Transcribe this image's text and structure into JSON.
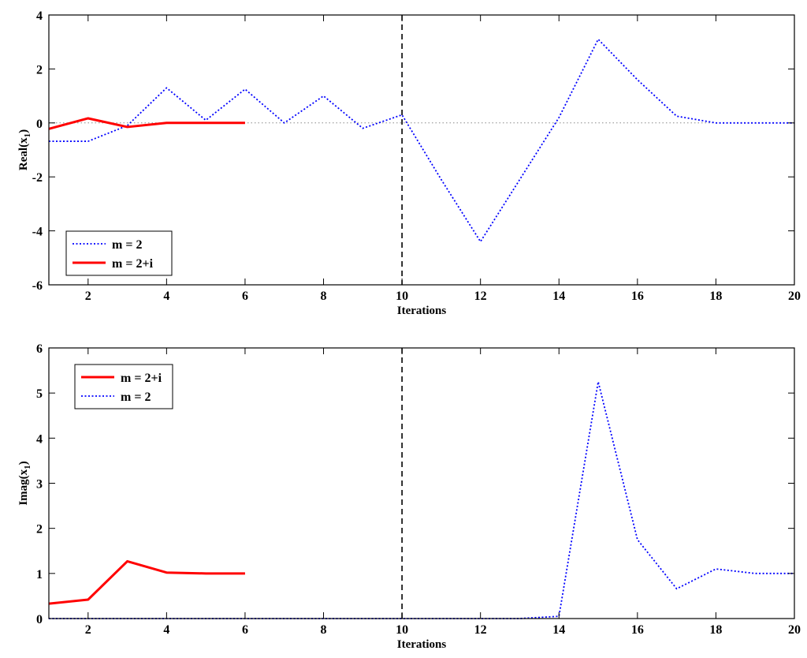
{
  "chart_data": [
    {
      "type": "line",
      "xlabel": "Iterations",
      "ylabel": "Real(x",
      "ylabel_sub": "1",
      "ylabel_close": ")",
      "xlim": [
        1,
        20
      ],
      "ylim": [
        -6,
        4
      ],
      "xticks": [
        2,
        4,
        6,
        8,
        10,
        12,
        14,
        16,
        18,
        20
      ],
      "yticks": [
        -6,
        -4,
        -2,
        0,
        2,
        4
      ],
      "grid": false,
      "vline_x": 10,
      "zero_line": true,
      "legend_position": "bottom-left",
      "legend": [
        "m = 2",
        "m = 2+i"
      ],
      "series": [
        {
          "name": "m = 2",
          "style": "dotted",
          "color": "#0000ff",
          "x": [
            1,
            2,
            3,
            4,
            5,
            6,
            7,
            8,
            9,
            10,
            11,
            12,
            13,
            14,
            15,
            16,
            17,
            18,
            19,
            20
          ],
          "y": [
            -0.68,
            -0.68,
            -0.1,
            1.3,
            0.1,
            1.25,
            0.0,
            1.0,
            -0.2,
            0.3,
            -2.1,
            -4.4,
            -2.1,
            0.2,
            3.1,
            1.6,
            0.25,
            0.0,
            0.0,
            0.0
          ]
        },
        {
          "name": "m = 2+i",
          "style": "solid",
          "color": "#ff0000",
          "x": [
            1,
            2,
            3,
            4,
            5,
            6
          ],
          "y": [
            -0.22,
            0.17,
            -0.15,
            0.0,
            0.0,
            0.0
          ]
        }
      ]
    },
    {
      "type": "line",
      "xlabel": "Iterations",
      "ylabel": "Imag(x",
      "ylabel_sub": "1",
      "ylabel_close": ")",
      "xlim": [
        1,
        20
      ],
      "ylim": [
        0,
        6
      ],
      "xticks": [
        2,
        4,
        6,
        8,
        10,
        12,
        14,
        16,
        18,
        20
      ],
      "yticks": [
        0,
        1,
        2,
        3,
        4,
        5,
        6
      ],
      "grid": false,
      "vline_x": 10,
      "zero_line": false,
      "legend_position": "top-left",
      "legend": [
        "m = 2+i",
        "m = 2"
      ],
      "series": [
        {
          "name": "m = 2+i",
          "style": "solid",
          "color": "#ff0000",
          "x": [
            1,
            2,
            3,
            4,
            5,
            6
          ],
          "y": [
            0.33,
            0.42,
            1.27,
            1.02,
            1.0,
            1.0
          ]
        },
        {
          "name": "m = 2",
          "style": "dotted",
          "color": "#0000ff",
          "x": [
            1,
            2,
            3,
            4,
            5,
            6,
            7,
            8,
            9,
            10,
            11,
            12,
            13,
            14,
            15,
            16,
            17,
            18,
            19,
            20
          ],
          "y": [
            0,
            0,
            0,
            0,
            0,
            0,
            0,
            0,
            0,
            0,
            0,
            0,
            0,
            0.05,
            5.25,
            1.75,
            0.66,
            1.1,
            1.0,
            1.0
          ]
        }
      ]
    }
  ]
}
